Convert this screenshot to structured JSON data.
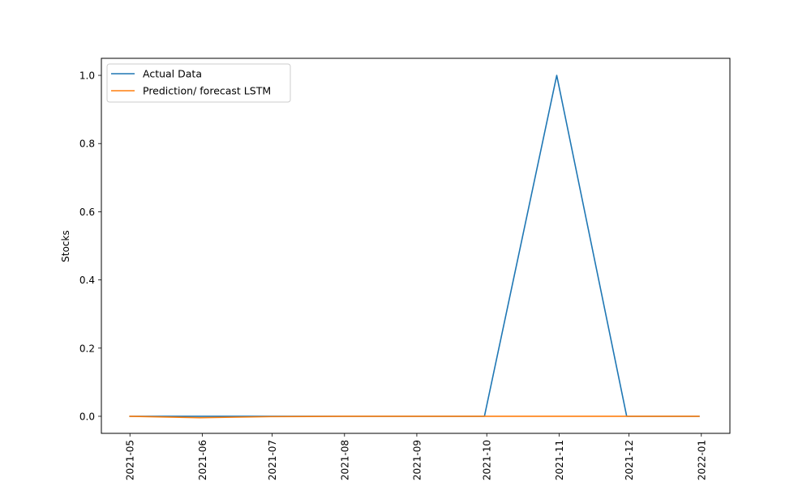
{
  "chart_data": {
    "type": "line",
    "title": "",
    "xlabel": "",
    "ylabel": "Stocks",
    "x": [
      "2021-05-01",
      "2021-06-01",
      "2021-07-01",
      "2021-08-01",
      "2021-09-01",
      "2021-10-01",
      "2021-11-01",
      "2021-12-01",
      "2022-01-01"
    ],
    "x_tick_labels": [
      "2021-05",
      "2021-06",
      "2021-07",
      "2021-08",
      "2021-09",
      "2021-10",
      "2021-11",
      "2021-12",
      "2022-01"
    ],
    "ylim": [
      -0.05,
      1.05
    ],
    "y_ticks": [
      0.0,
      0.2,
      0.4,
      0.6,
      0.8,
      1.0
    ],
    "y_tick_labels": [
      "0.0",
      "0.2",
      "0.4",
      "0.6",
      "0.8",
      "1.0"
    ],
    "grid": false,
    "legend_position": "top-left",
    "series": [
      {
        "name": "Actual Data",
        "color": "#1f77b4",
        "x": [
          "2021-05-01",
          "2021-05-31",
          "2021-06-30",
          "2021-07-31",
          "2021-08-31",
          "2021-09-30",
          "2021-10-31",
          "2021-11-30",
          "2021-12-31"
        ],
        "values": [
          0.0,
          0.0,
          0.0,
          0.0,
          0.0,
          0.0,
          1.0,
          0.0,
          0.0
        ]
      },
      {
        "name": "Prediction/ forecast LSTM",
        "color": "#ff7f0e",
        "x": [
          "2021-05-01",
          "2021-05-31",
          "2021-06-30",
          "2021-07-31",
          "2021-08-31",
          "2021-09-30",
          "2021-10-31",
          "2021-11-30",
          "2021-12-31"
        ],
        "values": [
          0.0,
          -0.004,
          -0.001,
          0.0,
          0.0,
          0.0,
          0.0,
          0.0,
          0.0
        ]
      }
    ]
  }
}
